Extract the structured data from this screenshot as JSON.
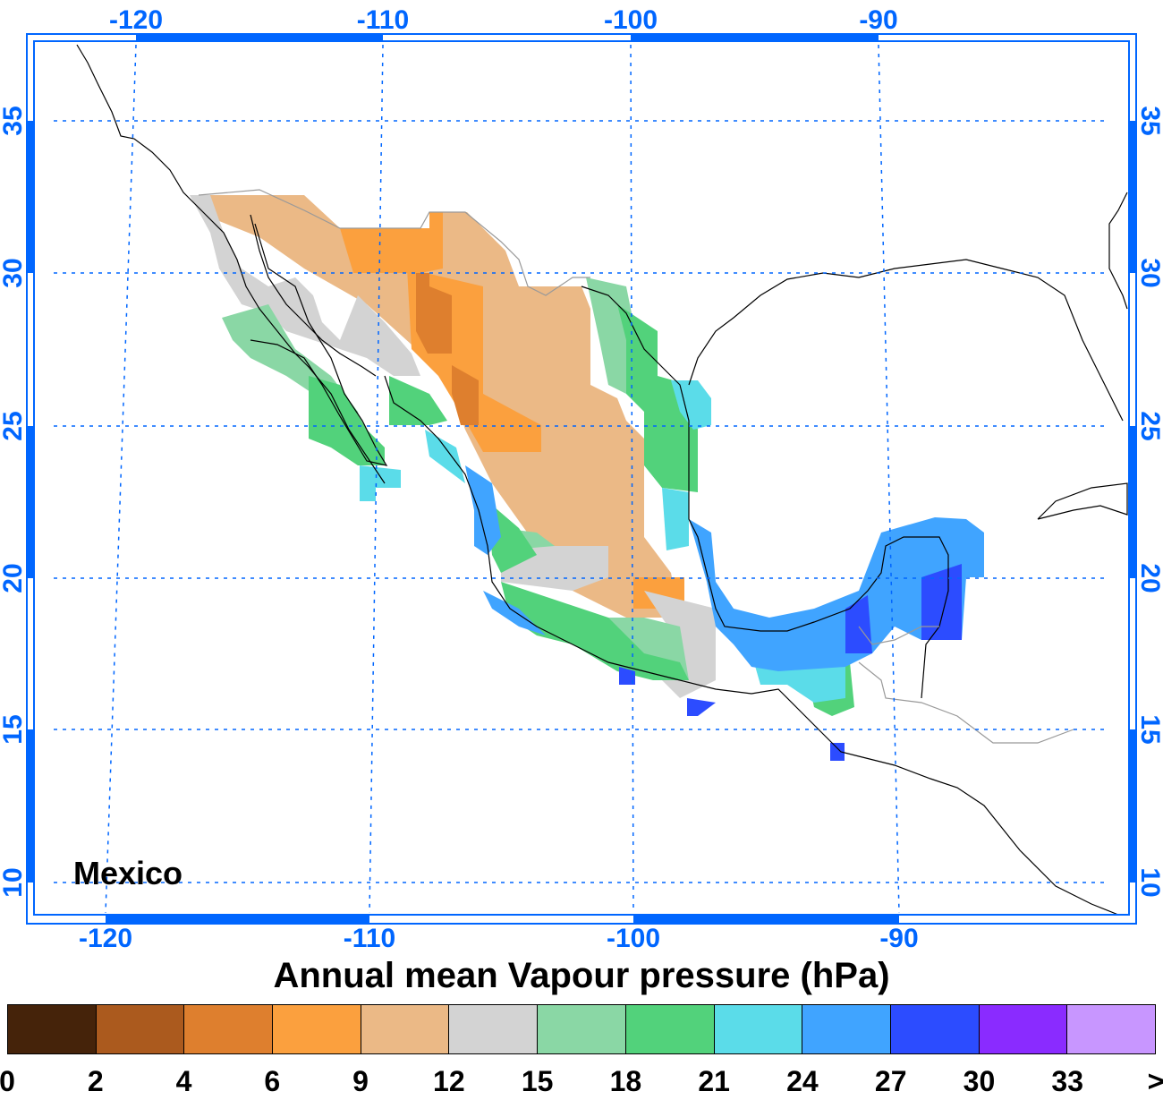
{
  "map": {
    "region_label": "Mexico",
    "lon_ticks": [
      "-120",
      "-110",
      "-100",
      "-90"
    ],
    "lat_ticks": [
      "35",
      "30",
      "25",
      "20",
      "15",
      "10"
    ],
    "axis_color": "#0066ff"
  },
  "legend": {
    "title": "Annual mean Vapour pressure (hPa)",
    "labels": [
      "0",
      "2",
      "4",
      "6",
      "9",
      "12",
      "15",
      "18",
      "21",
      "24",
      "27",
      "30",
      "33",
      ">"
    ],
    "colors": [
      "#45230a",
      "#ab5a1e",
      "#de7f2e",
      "#fba03e",
      "#ebb986",
      "#d3d3d3",
      "#8ad7a5",
      "#52d27b",
      "#5bdce9",
      "#40a4ff",
      "#2c4cff",
      "#8a2bff",
      "#c896ff"
    ]
  }
}
